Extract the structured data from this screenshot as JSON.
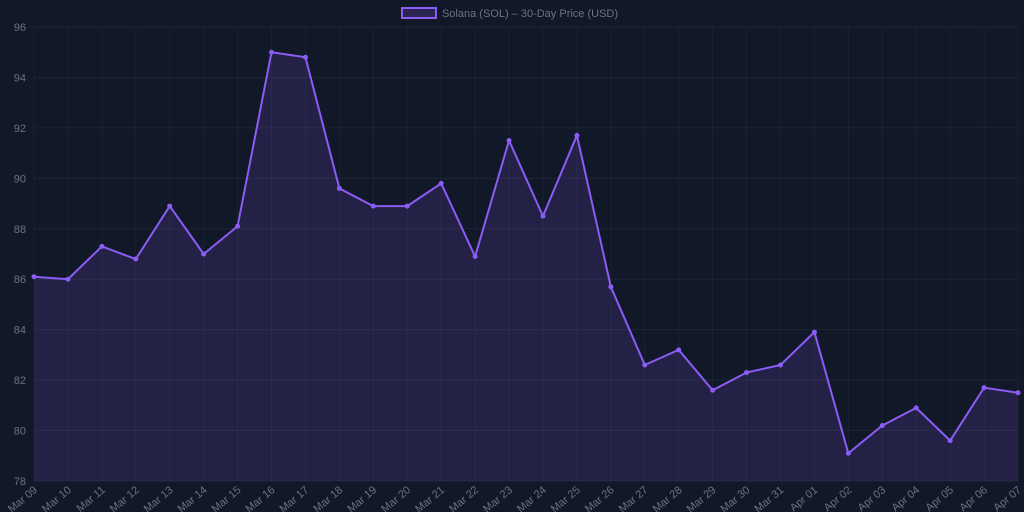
{
  "chart_data": {
    "type": "line",
    "categories": [
      "Mar 09",
      "Mar 10",
      "Mar 11",
      "Mar 12",
      "Mar 13",
      "Mar 14",
      "Mar 15",
      "Mar 16",
      "Mar 17",
      "Mar 18",
      "Mar 19",
      "Mar 20",
      "Mar 21",
      "Mar 22",
      "Mar 23",
      "Mar 24",
      "Mar 25",
      "Mar 26",
      "Mar 27",
      "Mar 28",
      "Mar 29",
      "Mar 30",
      "Mar 31",
      "Apr 01",
      "Apr 02",
      "Apr 03",
      "Apr 04",
      "Apr 05",
      "Apr 06",
      "Apr 07"
    ],
    "series": [
      {
        "name": "Solana (SOL) – 30-Day Price (USD)",
        "color": "#8b5cf6",
        "values": [
          86.1,
          86.0,
          87.3,
          86.8,
          88.9,
          87.0,
          88.1,
          95.0,
          94.8,
          89.6,
          88.9,
          88.9,
          89.8,
          86.9,
          91.5,
          88.5,
          91.7,
          85.7,
          82.6,
          83.2,
          81.6,
          82.3,
          82.6,
          83.9,
          79.1,
          80.2,
          80.9,
          79.6,
          81.7,
          81.5
        ]
      }
    ],
    "ylim": [
      78,
      96
    ],
    "yticks": [
      78,
      80,
      82,
      84,
      86,
      88,
      90,
      92,
      94,
      96
    ],
    "grid": true,
    "legend": "top"
  }
}
